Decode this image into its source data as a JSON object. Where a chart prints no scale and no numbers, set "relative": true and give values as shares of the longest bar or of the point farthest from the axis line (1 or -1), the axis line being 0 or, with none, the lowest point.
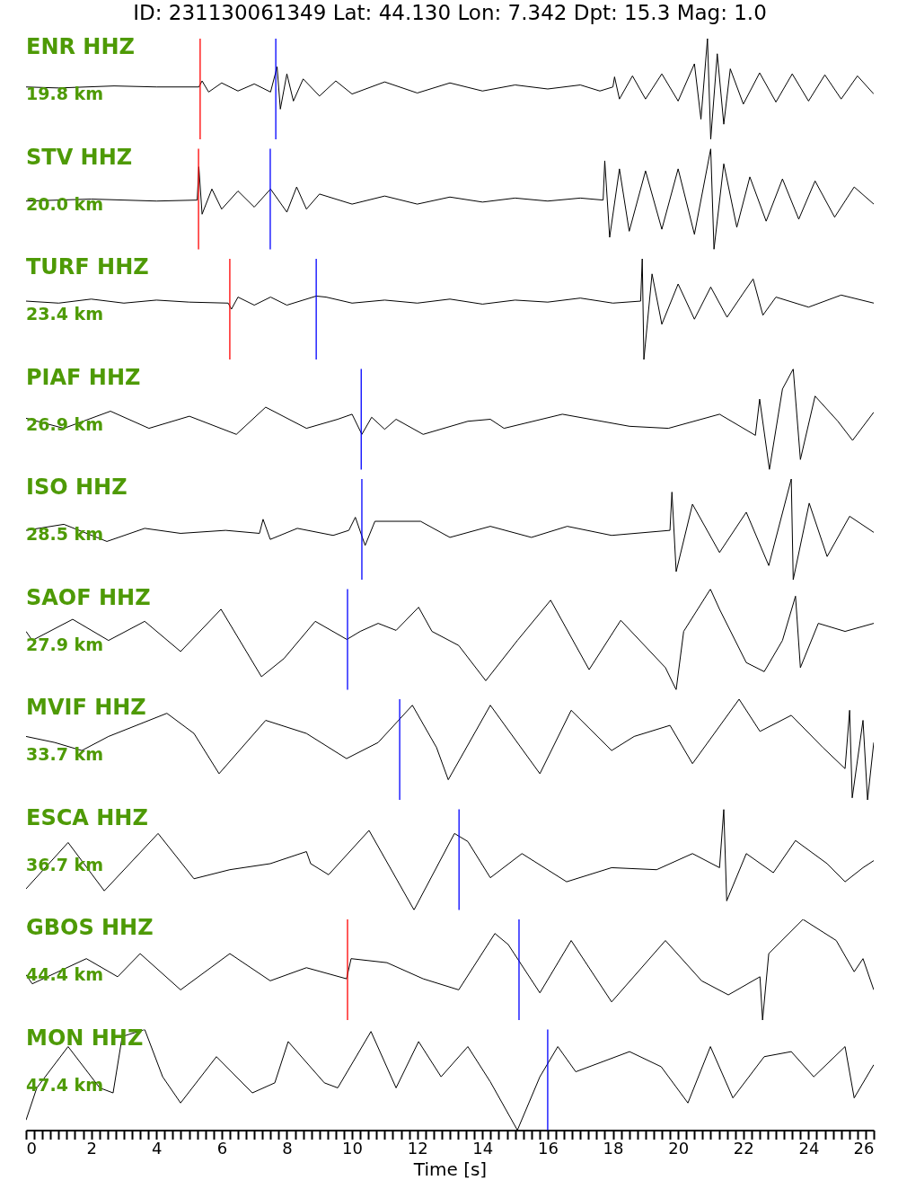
{
  "chart_data": [
    {
      "type": "line",
      "title": "ID: 231130061349 Lat:  44.130 Lon:   7.342 Dpt:    15.3 Mag:   1.0",
      "annotations": [
        "ENR HHZ",
        "19.8 km"
      ],
      "relative": true,
      "xlim": [
        0,
        26
      ],
      "tick_labels": false,
      "ref_lines": [
        {
          "axis": "x",
          "value": 5.34,
          "color": "#ff0000"
        },
        {
          "axis": "x",
          "value": 7.66,
          "color": "#0000ff"
        }
      ],
      "x": [
        0,
        1,
        2.7,
        4,
        5.3,
        5.4,
        5.6,
        6,
        6.5,
        7,
        7.5,
        7.7,
        7.8,
        8,
        8.2,
        8.5,
        9,
        9.5,
        10,
        11,
        12,
        13,
        14,
        15,
        16,
        17,
        17.6,
        18,
        18.05,
        18.2,
        18.6,
        19,
        19.5,
        20,
        20.5,
        20.7,
        20.9,
        21,
        21.2,
        21.4,
        21.6,
        22,
        22.5,
        23,
        23.5,
        24,
        24.5,
        25,
        25.5,
        26
      ],
      "series": [
        {
          "color": "#000000",
          "values": [
            0.52,
            0.51,
            0.53,
            0.52,
            0.52,
            0.58,
            0.47,
            0.56,
            0.48,
            0.55,
            0.47,
            0.72,
            0.3,
            0.65,
            0.38,
            0.6,
            0.43,
            0.58,
            0.45,
            0.57,
            0.46,
            0.56,
            0.48,
            0.54,
            0.5,
            0.54,
            0.48,
            0.52,
            0.62,
            0.4,
            0.63,
            0.4,
            0.65,
            0.38,
            0.75,
            0.2,
            1,
            0,
            0.85,
            0.15,
            0.7,
            0.35,
            0.66,
            0.37,
            0.65,
            0.38,
            0.64,
            0.4,
            0.63,
            0.45
          ]
        }
      ]
    },
    {
      "type": "line",
      "annotations": [
        "STV HHZ",
        "20.0 km"
      ],
      "relative": true,
      "xlim": [
        0,
        26
      ],
      "tick_labels": false,
      "ref_lines": [
        {
          "axis": "x",
          "value": 5.29,
          "color": "#ff0000"
        },
        {
          "axis": "x",
          "value": 7.49,
          "color": "#0000ff"
        }
      ],
      "x": [
        0,
        2,
        4,
        5.25,
        5.3,
        5.4,
        5.7,
        6,
        6.5,
        7,
        7.5,
        8,
        8.3,
        8.6,
        9,
        10,
        11,
        12,
        13,
        14,
        15,
        16,
        17,
        17.7,
        17.75,
        17.9,
        18.2,
        18.5,
        19,
        19.5,
        20,
        20.5,
        21,
        21.1,
        21.4,
        21.8,
        22.2,
        22.7,
        23.2,
        23.7,
        24.2,
        24.8,
        25.4,
        26
      ],
      "series": [
        {
          "color": "#000000",
          "values": [
            0.48,
            0.5,
            0.48,
            0.49,
            0.82,
            0.35,
            0.6,
            0.4,
            0.58,
            0.42,
            0.6,
            0.37,
            0.62,
            0.4,
            0.55,
            0.45,
            0.53,
            0.45,
            0.52,
            0.47,
            0.51,
            0.48,
            0.51,
            0.49,
            0.88,
            0.12,
            0.8,
            0.18,
            0.78,
            0.2,
            0.8,
            0.15,
            1,
            0,
            0.85,
            0.22,
            0.72,
            0.28,
            0.7,
            0.3,
            0.68,
            0.32,
            0.62,
            0.45
          ]
        }
      ]
    },
    {
      "type": "line",
      "annotations": [
        "TURF HHZ",
        "23.4 km"
      ],
      "relative": true,
      "xlim": [
        0,
        26
      ],
      "tick_labels": false,
      "ref_lines": [
        {
          "axis": "x",
          "value": 6.25,
          "color": "#ff0000"
        },
        {
          "axis": "x",
          "value": 8.9,
          "color": "#0000ff"
        }
      ],
      "x": [
        0,
        1,
        2,
        3,
        4,
        5,
        6.2,
        6.3,
        6.5,
        7,
        7.5,
        8,
        8.9,
        9.2,
        10,
        11,
        12,
        13,
        14,
        15,
        16,
        17,
        18,
        18.85,
        18.9,
        18.95,
        19.2,
        19.5,
        20,
        20.5,
        21,
        21.5,
        22,
        22.3,
        22.6,
        23,
        24,
        25,
        26
      ],
      "series": [
        {
          "color": "#000000",
          "values": [
            0.58,
            0.56,
            0.6,
            0.56,
            0.59,
            0.57,
            0.56,
            0.5,
            0.62,
            0.54,
            0.62,
            0.54,
            0.63,
            0.62,
            0.56,
            0.59,
            0.56,
            0.6,
            0.55,
            0.59,
            0.57,
            0.61,
            0.56,
            0.58,
            1,
            0,
            0.85,
            0.35,
            0.75,
            0.4,
            0.72,
            0.42,
            0.66,
            0.8,
            0.44,
            0.62,
            0.52,
            0.64,
            0.56
          ]
        }
      ]
    },
    {
      "type": "line",
      "annotations": [
        "PIAF HHZ",
        "26.9 km"
      ],
      "relative": true,
      "xlim": [
        0,
        26
      ],
      "tick_labels": false,
      "ref_lines": [
        {
          "axis": "x",
          "value": 10.28,
          "color": "#0000ff"
        }
      ],
      "x": [
        0,
        1.16,
        2.59,
        3.77,
        5.01,
        6.45,
        7.35,
        8.6,
        9.56,
        10,
        10.3,
        10.6,
        11,
        11.35,
        12.18,
        13.55,
        14.24,
        14.66,
        16.45,
        18.51,
        19.7,
        21.27,
        22.37,
        22.5,
        22.8,
        23.2,
        23.53,
        23.75,
        24.2,
        24.9,
        25.35,
        26
      ],
      "series": [
        {
          "color": "#000000",
          "values": [
            0.51,
            0.41,
            0.58,
            0.41,
            0.53,
            0.35,
            0.62,
            0.41,
            0.5,
            0.55,
            0.35,
            0.52,
            0.4,
            0.5,
            0.35,
            0.48,
            0.5,
            0.41,
            0.55,
            0.43,
            0.41,
            0.55,
            0.34,
            0.7,
            0,
            0.8,
            1,
            0.1,
            0.73,
            0.48,
            0.29,
            0.57
          ]
        }
      ]
    },
    {
      "type": "line",
      "annotations": [
        "ISO HHZ",
        "28.5 km"
      ],
      "relative": true,
      "xlim": [
        0,
        26
      ],
      "tick_labels": false,
      "ref_lines": [
        {
          "axis": "x",
          "value": 10.3,
          "color": "#0000ff"
        }
      ],
      "x": [
        0,
        1.16,
        2.48,
        3.64,
        4.74,
        6.12,
        7.16,
        7.27,
        7.49,
        8.32,
        9.42,
        9.9,
        10.1,
        10.4,
        10.7,
        12.1,
        13,
        14.24,
        15.5,
        16.6,
        17.96,
        19.75,
        19.81,
        19.94,
        20.44,
        21.27,
        22.09,
        22.78,
        23.47,
        23.53,
        24.02,
        24.57,
        25.26,
        26
      ],
      "series": [
        {
          "color": "#000000",
          "values": [
            0.49,
            0.55,
            0.38,
            0.51,
            0.46,
            0.49,
            0.46,
            0.6,
            0.4,
            0.51,
            0.44,
            0.49,
            0.62,
            0.34,
            0.58,
            0.58,
            0.42,
            0.53,
            0.42,
            0.53,
            0.44,
            0.49,
            0.87,
            0.08,
            0.75,
            0.27,
            0.67,
            0.14,
            1,
            0,
            0.76,
            0.23,
            0.63,
            0.47
          ]
        }
      ]
    },
    {
      "type": "line",
      "annotations": [
        "SAOF HHZ",
        "27.9 km"
      ],
      "relative": true,
      "xlim": [
        0,
        26
      ],
      "tick_labels": false,
      "ref_lines": [
        {
          "axis": "x",
          "value": 9.86,
          "color": "#0000ff"
        }
      ],
      "x": [
        0,
        0.19,
        1.43,
        2.53,
        3.64,
        4.74,
        5.98,
        7.22,
        7.91,
        8.87,
        9.84,
        10.25,
        10.8,
        11.35,
        12.04,
        12.45,
        13.27,
        14.1,
        15.07,
        16.09,
        17.27,
        18.24,
        19.61,
        19.94,
        20.17,
        20.99,
        21.27,
        22.09,
        22.64,
        23.2,
        23.6,
        23.75,
        24.3,
        25.12,
        26
      ],
      "series": [
        {
          "color": "#000000",
          "values": [
            0.58,
            0.49,
            0.7,
            0.49,
            0.68,
            0.38,
            0.8,
            0.13,
            0.31,
            0.68,
            0.5,
            0.58,
            0.66,
            0.59,
            0.82,
            0.58,
            0.44,
            0.09,
            0.49,
            0.89,
            0.2,
            0.69,
            0.22,
            0,
            0.58,
            1,
            0.8,
            0.27,
            0.18,
            0.49,
            0.93,
            0.22,
            0.66,
            0.58,
            0.66
          ]
        }
      ]
    },
    {
      "type": "line",
      "annotations": [
        "MVIF HHZ",
        "33.7 km"
      ],
      "relative": true,
      "xlim": [
        0,
        26
      ],
      "tick_labels": false,
      "ref_lines": [
        {
          "axis": "x",
          "value": 11.46,
          "color": "#0000ff"
        }
      ],
      "x": [
        0,
        0.88,
        1.71,
        2.53,
        4.32,
        5.15,
        5.92,
        7.35,
        8.6,
        9.83,
        10.8,
        11.85,
        12.59,
        12.95,
        14.24,
        15.76,
        16.72,
        17.96,
        18.65,
        19.75,
        20.44,
        21.87,
        22.51,
        23.47,
        24.44,
        25.12,
        25.26,
        25.34,
        25.67,
        25.81,
        26
      ],
      "series": [
        {
          "color": "#000000",
          "values": [
            0.63,
            0.57,
            0.49,
            0.63,
            0.86,
            0.66,
            0.26,
            0.79,
            0.66,
            0.41,
            0.57,
            0.94,
            0.52,
            0.2,
            0.94,
            0.26,
            0.89,
            0.49,
            0.63,
            0.74,
            0.36,
            1,
            0.68,
            0.84,
            0.52,
            0.31,
            0.89,
            0.02,
            0.79,
            0,
            0.57
          ]
        }
      ]
    },
    {
      "type": "line",
      "annotations": [
        "ESCA HHZ",
        "36.7 km"
      ],
      "relative": true,
      "xlim": [
        0,
        26
      ],
      "tick_labels": false,
      "ref_lines": [
        {
          "axis": "x",
          "value": 13.28,
          "color": "#0000ff"
        }
      ],
      "x": [
        0,
        1.29,
        2.4,
        4.05,
        5.15,
        6.25,
        7.49,
        8.6,
        8.73,
        9.28,
        10.52,
        11.9,
        13.14,
        13.55,
        14.24,
        15.21,
        16.58,
        17.96,
        19.34,
        20.44,
        21.27,
        21.4,
        21.49,
        22.09,
        22.92,
        23.6,
        24.57,
        25.12,
        25.67,
        26
      ],
      "series": [
        {
          "color": "#000000",
          "values": [
            0.21,
            0.67,
            0.19,
            0.76,
            0.31,
            0.4,
            0.46,
            0.58,
            0.46,
            0.35,
            0.79,
            0,
            0.76,
            0.68,
            0.32,
            0.56,
            0.28,
            0.42,
            0.4,
            0.56,
            0.42,
            1,
            0.09,
            0.56,
            0.37,
            0.69,
            0.46,
            0.28,
            0.42,
            0.49
          ]
        }
      ]
    },
    {
      "type": "line",
      "annotations": [
        "GBOS HHZ",
        "44.4 km"
      ],
      "relative": true,
      "xlim": [
        0,
        26
      ],
      "tick_labels": false,
      "ref_lines": [
        {
          "axis": "x",
          "value": 9.86,
          "color": "#ff0000"
        },
        {
          "axis": "x",
          "value": 15.12,
          "color": "#0000ff"
        }
      ],
      "x": [
        0,
        0.19,
        1.85,
        2.81,
        3.5,
        4.74,
        6.25,
        7.49,
        8.6,
        9.83,
        9.97,
        11.07,
        12.18,
        13.27,
        14.38,
        14.79,
        15.76,
        16.72,
        17.96,
        19.61,
        20.72,
        21.54,
        22.51,
        22.59,
        22.78,
        23.83,
        24.85,
        25.4,
        25.67,
        26
      ],
      "series": [
        {
          "color": "#000000",
          "values": [
            0.45,
            0.36,
            0.61,
            0.43,
            0.66,
            0.3,
            0.66,
            0.39,
            0.52,
            0.41,
            0.61,
            0.57,
            0.41,
            0.3,
            0.86,
            0.75,
            0.27,
            0.79,
            0.18,
            0.79,
            0.39,
            0.25,
            0.43,
            0,
            0.66,
            1,
            0.79,
            0.48,
            0.61,
            0.3
          ]
        }
      ]
    },
    {
      "type": "line",
      "annotations": [
        "MON HHZ",
        "47.4 km"
      ],
      "relative": true,
      "xlim": [
        0,
        26
      ],
      "xlabel": "Time [s]",
      "ref_lines": [
        {
          "axis": "x",
          "value": 16.0,
          "color": "#0000ff"
        }
      ],
      "xticks": [
        0,
        {
          "value": 0.25,
          "label": null
        },
        {
          "value": 0.5,
          "label": null
        },
        {
          "value": 0.75,
          "label": null
        },
        {
          "value": 1,
          "label": null
        },
        {
          "value": 1.25,
          "label": null
        },
        {
          "value": 1.5,
          "label": null
        },
        {
          "value": 1.75,
          "label": null
        },
        2,
        {
          "value": 2.25,
          "label": null
        },
        {
          "value": 2.5,
          "label": null
        },
        {
          "value": 2.75,
          "label": null
        },
        {
          "value": 3,
          "label": null
        },
        {
          "value": 3.25,
          "label": null
        },
        {
          "value": 3.5,
          "label": null
        },
        {
          "value": 3.75,
          "label": null
        },
        4,
        {
          "value": 4.25,
          "label": null
        },
        {
          "value": 4.5,
          "label": null
        },
        {
          "value": 4.75,
          "label": null
        },
        {
          "value": 5,
          "label": null
        },
        {
          "value": 5.25,
          "label": null
        },
        {
          "value": 5.5,
          "label": null
        },
        {
          "value": 5.75,
          "label": null
        },
        6,
        {
          "value": 6.25,
          "label": null
        },
        {
          "value": 6.5,
          "label": null
        },
        {
          "value": 6.75,
          "label": null
        },
        {
          "value": 7,
          "label": null
        },
        {
          "value": 7.25,
          "label": null
        },
        {
          "value": 7.5,
          "label": null
        },
        {
          "value": 7.75,
          "label": null
        },
        8,
        {
          "value": 8.25,
          "label": null
        },
        {
          "value": 8.5,
          "label": null
        },
        {
          "value": 8.75,
          "label": null
        },
        {
          "value": 9,
          "label": null
        },
        {
          "value": 9.25,
          "label": null
        },
        {
          "value": 9.5,
          "label": null
        },
        {
          "value": 9.75,
          "label": null
        },
        10,
        {
          "value": 10.25,
          "label": null
        },
        {
          "value": 10.5,
          "label": null
        },
        {
          "value": 10.75,
          "label": null
        },
        {
          "value": 11,
          "label": null
        },
        {
          "value": 11.25,
          "label": null
        },
        {
          "value": 11.5,
          "label": null
        },
        {
          "value": 11.75,
          "label": null
        },
        12,
        {
          "value": 12.25,
          "label": null
        },
        {
          "value": 12.5,
          "label": null
        },
        {
          "value": 12.75,
          "label": null
        },
        {
          "value": 13,
          "label": null
        },
        {
          "value": 13.25,
          "label": null
        },
        {
          "value": 13.5,
          "label": null
        },
        {
          "value": 13.75,
          "label": null
        },
        14,
        {
          "value": 14.25,
          "label": null
        },
        {
          "value": 14.5,
          "label": null
        },
        {
          "value": 14.75,
          "label": null
        },
        {
          "value": 15,
          "label": null
        },
        {
          "value": 15.25,
          "label": null
        },
        {
          "value": 15.5,
          "label": null
        },
        {
          "value": 15.75,
          "label": null
        },
        16,
        {
          "value": 16.25,
          "label": null
        },
        {
          "value": 16.5,
          "label": null
        },
        {
          "value": 16.75,
          "label": null
        },
        {
          "value": 17,
          "label": null
        },
        {
          "value": 17.25,
          "label": null
        },
        {
          "value": 17.5,
          "label": null
        },
        {
          "value": 17.75,
          "label": null
        },
        18,
        {
          "value": 18.25,
          "label": null
        },
        {
          "value": 18.5,
          "label": null
        },
        {
          "value": 18.75,
          "label": null
        },
        {
          "value": 19,
          "label": null
        },
        {
          "value": 19.25,
          "label": null
        },
        {
          "value": 19.5,
          "label": null
        },
        {
          "value": 19.75,
          "label": null
        },
        20,
        {
          "value": 20.25,
          "label": null
        },
        {
          "value": 20.5,
          "label": null
        },
        {
          "value": 20.75,
          "label": null
        },
        {
          "value": 21,
          "label": null
        },
        {
          "value": 21.25,
          "label": null
        },
        {
          "value": 21.5,
          "label": null
        },
        {
          "value": 21.75,
          "label": null
        },
        22,
        {
          "value": 22.25,
          "label": null
        },
        {
          "value": 22.5,
          "label": null
        },
        {
          "value": 22.75,
          "label": null
        },
        {
          "value": 23,
          "label": null
        },
        {
          "value": 23.25,
          "label": null
        },
        {
          "value": 23.5,
          "label": null
        },
        {
          "value": 23.75,
          "label": null
        },
        24,
        {
          "value": 24.25,
          "label": null
        },
        {
          "value": 24.5,
          "label": null
        },
        {
          "value": 24.75,
          "label": null
        },
        {
          "value": 25,
          "label": null
        },
        {
          "value": 25.25,
          "label": null
        },
        {
          "value": 25.5,
          "label": null
        },
        {
          "value": 25.75,
          "label": null
        },
        26
      ],
      "x": [
        0,
        0.33,
        1.29,
        2.26,
        2.67,
        2.95,
        3.64,
        4.19,
        4.74,
        5.84,
        6.94,
        7.63,
        8.04,
        9.15,
        9.56,
        10.58,
        11.35,
        12.04,
        12.73,
        13.55,
        14.24,
        15.07,
        15.76,
        16.31,
        16.86,
        18.51,
        19.48,
        20.3,
        20.99,
        21.68,
        22.64,
        23.47,
        24.16,
        25.12,
        25.4,
        26
      ],
      "series": [
        {
          "color": "#000000",
          "values": [
            0.1,
            0.42,
            0.83,
            0.42,
            0.37,
            0.93,
            1,
            0.53,
            0.27,
            0.73,
            0.37,
            0.47,
            0.88,
            0.47,
            0.42,
            0.98,
            0.42,
            0.88,
            0.53,
            0.83,
            0.48,
            0,
            0.53,
            0.83,
            0.58,
            0.78,
            0.63,
            0.27,
            0.83,
            0.32,
            0.73,
            0.78,
            0.53,
            0.83,
            0.32,
            0.65
          ]
        }
      ]
    }
  ]
}
